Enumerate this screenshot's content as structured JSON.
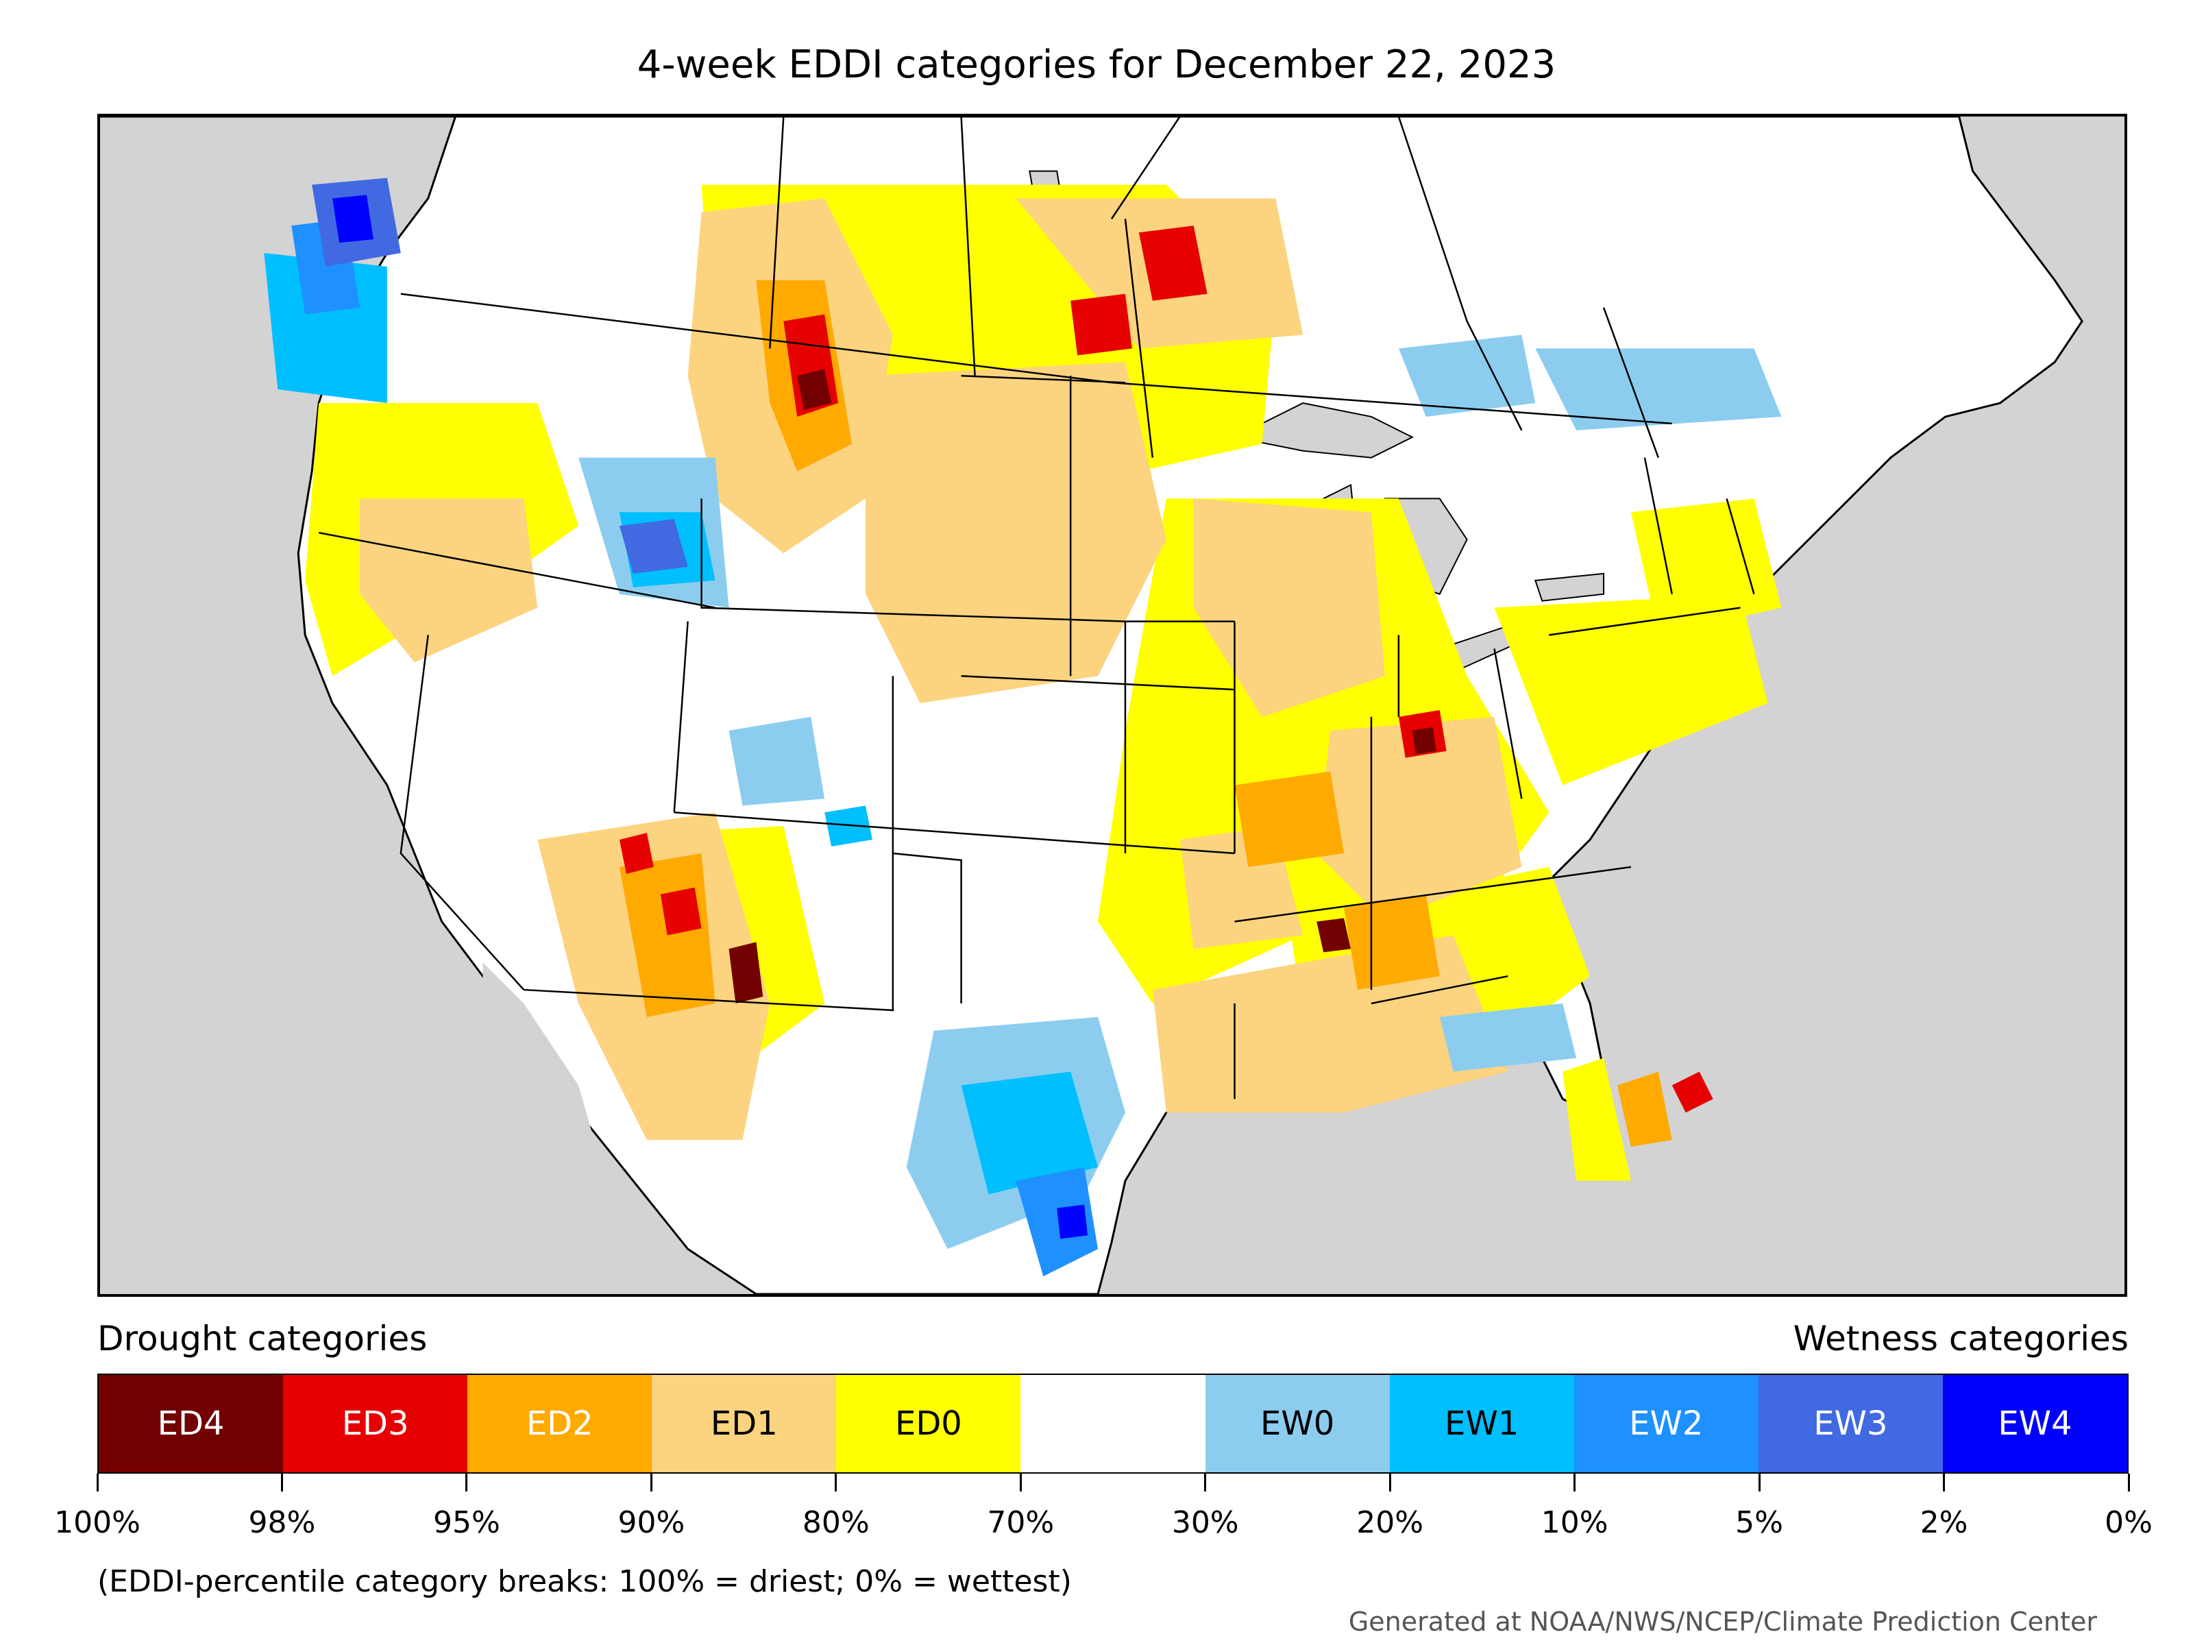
{
  "title": "4-week EDDI categories for December 22, 2023",
  "legend": {
    "drought_heading": "Drought categories",
    "wetness_heading": "Wetness categories",
    "categories": [
      {
        "label": "ED4",
        "color": "#730000",
        "text_color": "#ffffff"
      },
      {
        "label": "ED3",
        "color": "#e60000",
        "text_color": "#ffffff"
      },
      {
        "label": "ED2",
        "color": "#ffaa00",
        "text_color": "#ffffff"
      },
      {
        "label": "ED1",
        "color": "#fcd37f",
        "text_color": "#000000"
      },
      {
        "label": "ED0",
        "color": "#ffff00",
        "text_color": "#000000"
      },
      {
        "label": "",
        "color": "#ffffff",
        "text_color": "#000000"
      },
      {
        "label": "EW0",
        "color": "#8ccdef",
        "text_color": "#000000"
      },
      {
        "label": "EW1",
        "color": "#00bfff",
        "text_color": "#000000"
      },
      {
        "label": "EW2",
        "color": "#1e90ff",
        "text_color": "#ffffff"
      },
      {
        "label": "EW3",
        "color": "#4169e1",
        "text_color": "#ffffff"
      },
      {
        "label": "EW4",
        "color": "#0000ff",
        "text_color": "#ffffff"
      }
    ],
    "breaks": [
      "100%",
      "98%",
      "95%",
      "90%",
      "80%",
      "70%",
      "30%",
      "20%",
      "10%",
      "5%",
      "2%",
      "0%"
    ]
  },
  "note": "(EDDI-percentile category breaks: 100% = driest; 0% = wettest)",
  "credit": "Generated at NOAA/NWS/NCEP/Climate Prediction Center",
  "map": {
    "ocean_color": "#d3d3d3",
    "land_color": "#ffffff",
    "border_color": "#000000"
  }
}
